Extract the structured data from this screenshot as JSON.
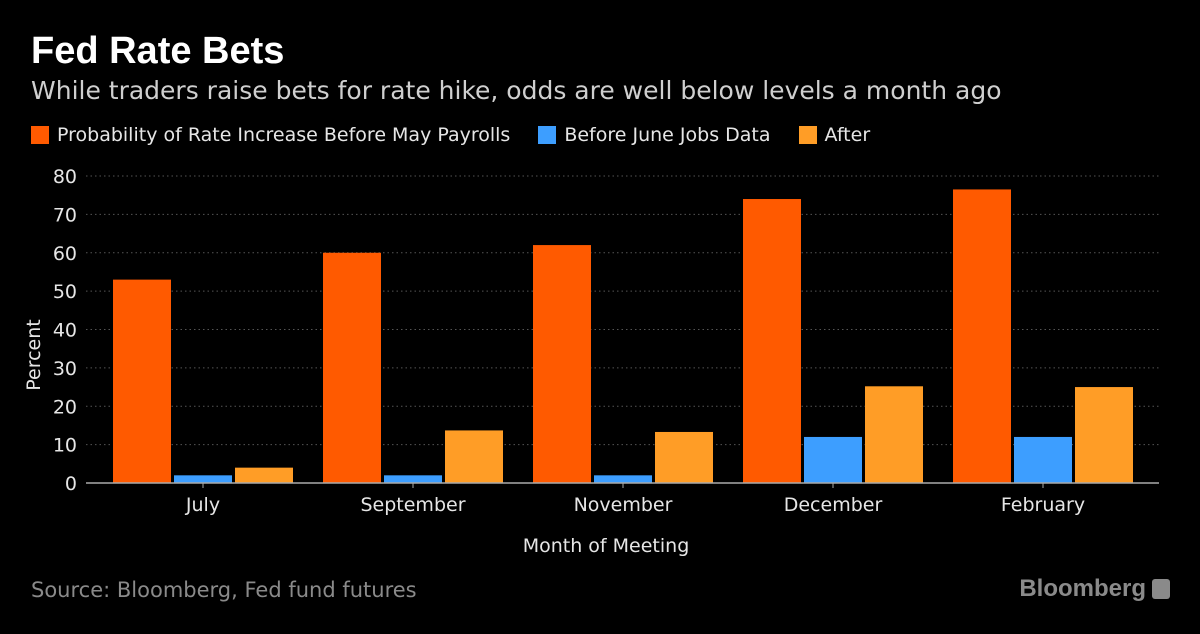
{
  "title": "Fed Rate Bets",
  "subtitle": "While traders raise bets for rate hike, odds are well below levels a month ago",
  "source": "Source: Bloomberg, Fed fund futures",
  "logo": "Bloomberg",
  "chart_data": {
    "type": "bar",
    "title": "Fed Rate Bets",
    "xlabel": "Month of Meeting",
    "ylabel": "Percent",
    "ylim": [
      0,
      80
    ],
    "yticks": [
      0,
      10,
      20,
      30,
      40,
      50,
      60,
      70,
      80
    ],
    "grid": true,
    "legend_position": "top-left",
    "categories": [
      "July",
      "September",
      "November",
      "December",
      "February"
    ],
    "series": [
      {
        "name": "Probability of Rate Increase Before May Payrolls",
        "color": "#ff5a00",
        "values": [
          53,
          60,
          62,
          74,
          76.5
        ]
      },
      {
        "name": "Before June Jobs Data",
        "color": "#3d9eff",
        "values": [
          2,
          2,
          2,
          12,
          12
        ]
      },
      {
        "name": "After",
        "color": "#ff9d26",
        "values": [
          4,
          13.7,
          13.3,
          25.2,
          25
        ]
      }
    ]
  }
}
